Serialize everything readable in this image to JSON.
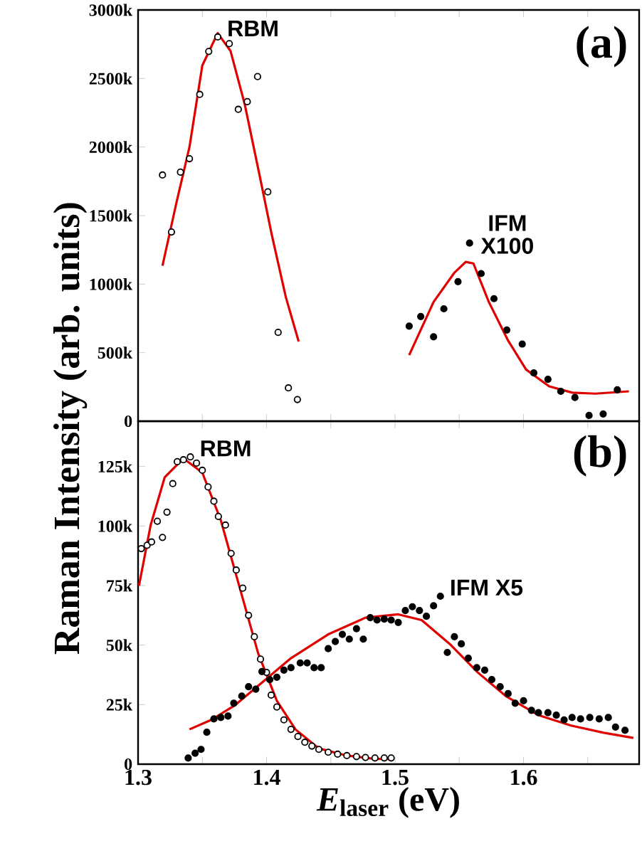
{
  "chart_data": [
    {
      "type": "scatter",
      "xlim": [
        1.3,
        1.69
      ],
      "ylim": [
        0,
        3000
      ],
      "xticks": [
        1.3,
        1.35,
        1.4,
        1.45,
        1.5,
        1.55,
        1.6,
        1.65
      ],
      "yticks": [
        {
          "value": 0,
          "label": "0"
        },
        {
          "value": 500,
          "label": "500k"
        },
        {
          "value": 1000,
          "label": "1000k"
        },
        {
          "value": 1500,
          "label": "1500k"
        },
        {
          "value": 2000,
          "label": "2000k"
        },
        {
          "value": 2500,
          "label": "2500k"
        },
        {
          "value": 3000,
          "label": "3000k"
        }
      ],
      "tick_labels": "y",
      "annotations": [
        "(a)"
      ],
      "series": [
        {
          "name": "RBM",
          "type": "scatter",
          "marker": "circle",
          "color": "#000000",
          "x": [
            1.319,
            1.326,
            1.333,
            1.34,
            1.348,
            1.355,
            1.362,
            1.371,
            1.378,
            1.385,
            1.393,
            1.401,
            1.409,
            1.417,
            1.424
          ],
          "values": [
            1796,
            1380,
            1817,
            1915,
            2384,
            2697,
            2803,
            2754,
            2275,
            2331,
            2514,
            1673,
            648,
            243,
            158
          ]
        },
        {
          "type": "line",
          "marker": "none",
          "color": "#e00000",
          "x": [
            1.319,
            1.33,
            1.34,
            1.35,
            1.362,
            1.372,
            1.383,
            1.394,
            1.404,
            1.415,
            1.425
          ],
          "values": [
            1134,
            1600,
            2000,
            2595,
            2831,
            2700,
            2313,
            1820,
            1363,
            905,
            581
          ]
        },
        {
          "name": "IFM X100",
          "type": "scatter",
          "marker": "circle",
          "color": "#000000",
          "x": [
            1.511,
            1.52,
            1.53,
            1.538,
            1.549,
            1.558,
            1.567,
            1.577,
            1.587,
            1.599,
            1.608,
            1.619,
            1.629,
            1.64,
            1.651,
            1.662,
            1.673
          ],
          "values": [
            694,
            764,
            616,
            820,
            1018,
            1299,
            1077,
            894,
            665,
            563,
            352,
            306,
            218,
            173,
            42,
            53,
            229
          ]
        },
        {
          "type": "line",
          "marker": "none",
          "color": "#e00000",
          "x": [
            1.511,
            1.53,
            1.546,
            1.555,
            1.561,
            1.573,
            1.588,
            1.602,
            1.62,
            1.638,
            1.656,
            1.682
          ],
          "values": [
            482,
            870,
            1081,
            1162,
            1151,
            870,
            588,
            377,
            254,
            208,
            201,
            218
          ]
        }
      ]
    },
    {
      "type": "scatter",
      "xlim": [
        1.3,
        1.69
      ],
      "ylim": [
        0,
        144
      ],
      "xticks": [
        1.3,
        {
          "value": 1.35,
          "label": null
        },
        1.4,
        {
          "value": 1.45,
          "label": null
        },
        1.5,
        {
          "value": 1.55,
          "label": null
        },
        1.6,
        {
          "value": 1.65,
          "label": null
        }
      ],
      "yticks": [
        {
          "value": 0,
          "label": "0"
        },
        {
          "value": 25,
          "label": "25k"
        },
        {
          "value": 50,
          "label": "50k"
        },
        {
          "value": 75,
          "label": "75k"
        },
        {
          "value": 100,
          "label": "100k"
        },
        {
          "value": 125,
          "label": "125k"
        }
      ],
      "xlabel": "*E*$_{laser}$ (eV)",
      "ylabel": "Raman Intensity (arb. units)",
      "annotations": [
        "(b)"
      ],
      "series": [
        {
          "name": "RBM",
          "type": "scatter",
          "marker": "circle",
          "color": "#000000",
          "x": [
            1.3025,
            1.307,
            1.3105,
            1.315,
            1.319,
            1.3225,
            1.327,
            1.3305,
            1.3353,
            1.3407,
            1.3455,
            1.35,
            1.3545,
            1.359,
            1.3625,
            1.368,
            1.3724,
            1.3764,
            1.3815,
            1.386,
            1.3905,
            1.3953,
            1.4,
            1.4036,
            1.408,
            1.4135,
            1.419,
            1.4244,
            1.4298,
            1.4353,
            1.4407,
            1.448,
            1.4553,
            1.4625,
            1.47,
            1.477,
            1.4844,
            1.4916,
            1.497
          ],
          "values": [
            90.5,
            91.9,
            93.3,
            102.0,
            95.2,
            105.8,
            117.8,
            127.0,
            127.8,
            129.0,
            126.4,
            123.4,
            116.4,
            110.4,
            104.0,
            100.4,
            88.5,
            81.5,
            73.9,
            62.5,
            53.5,
            44.1,
            38.5,
            29.0,
            24.0,
            18.6,
            14.6,
            11.6,
            9.2,
            7.6,
            6.2,
            5.0,
            4.2,
            3.6,
            3.2,
            2.8,
            2.6,
            2.6,
            2.6
          ]
        },
        {
          "type": "line",
          "marker": "none",
          "color": "#e00000",
          "x": [
            1.3007,
            1.3098,
            1.3207,
            1.3353,
            1.35,
            1.3644,
            1.3789,
            1.3935,
            1.408,
            1.4225,
            1.4407,
            1.4625,
            1.4844,
            1.4989
          ],
          "values": [
            74.9,
            100.4,
            120.4,
            128.4,
            122.4,
            102.4,
            74.5,
            46.5,
            26.6,
            14.6,
            6.6,
            3.6,
            2.2,
            2.2
          ]
        },
        {
          "name": "IFM X5",
          "type": "scatter",
          "marker": "circle",
          "color": "#000000",
          "x": [
            1.339,
            1.3444,
            1.349,
            1.3535,
            1.359,
            1.3644,
            1.37,
            1.3745,
            1.3807,
            1.386,
            1.3916,
            1.3964,
            1.4025,
            1.408,
            1.4135,
            1.419,
            1.4262,
            1.4316,
            1.437,
            1.4425,
            1.448,
            1.4535,
            1.459,
            1.4644,
            1.47,
            1.4753,
            1.4807,
            1.486,
            1.4916,
            1.497,
            1.5025,
            1.508,
            1.5135,
            1.519,
            1.5244,
            1.53,
            1.5353,
            1.5407,
            1.5462,
            1.5516,
            1.557,
            1.5636,
            1.5698,
            1.5753,
            1.5818,
            1.588,
            1.5935,
            1.6,
            1.6062,
            1.6116,
            1.619,
            1.6255,
            1.6316,
            1.6378,
            1.6444,
            1.6516,
            1.6589,
            1.666,
            1.6716,
            1.679
          ],
          "values": [
            2.6,
            4.6,
            6.2,
            13.4,
            19.0,
            19.6,
            20.2,
            25.6,
            28.6,
            32.5,
            31.5,
            38.9,
            35.5,
            36.5,
            39.5,
            40.5,
            42.5,
            42.5,
            40.5,
            40.5,
            48.5,
            51.5,
            54.5,
            52.5,
            56.9,
            52.5,
            61.5,
            60.5,
            60.9,
            60.5,
            59.5,
            64.5,
            66.1,
            64.5,
            62.1,
            66.5,
            70.5,
            46.9,
            53.5,
            50.5,
            44.5,
            40.5,
            39.5,
            35.5,
            32.5,
            29.6,
            25.6,
            26.6,
            22.6,
            21.6,
            21.6,
            20.6,
            18.6,
            19.6,
            19.0,
            19.6,
            19.0,
            19.6,
            15.6,
            14.2
          ]
        },
        {
          "type": "line",
          "marker": "none",
          "color": "#e00000",
          "x": [
            1.34,
            1.357,
            1.375,
            1.397,
            1.419,
            1.448,
            1.477,
            1.5025,
            1.5207,
            1.5425,
            1.5644,
            1.5862,
            1.6116,
            1.637,
            1.6625,
            1.6855
          ],
          "values": [
            14.6,
            18.6,
            24.6,
            34.5,
            44.5,
            54.5,
            61.5,
            62.9,
            60.5,
            50.5,
            38.5,
            28.6,
            20.6,
            16.2,
            13.2,
            11.0
          ]
        }
      ]
    }
  ]
}
